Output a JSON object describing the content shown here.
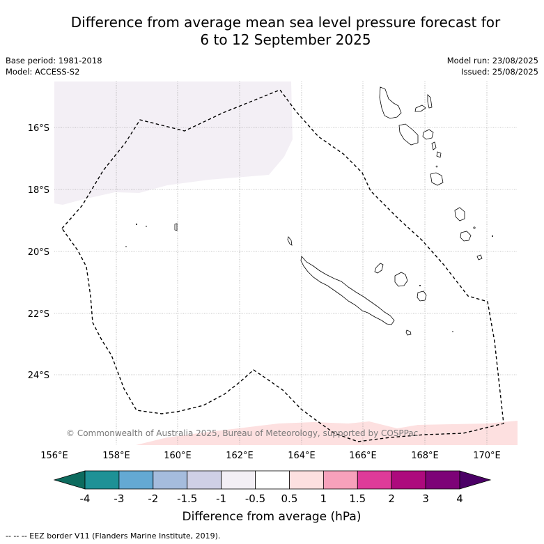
{
  "title_line1": "Difference from average mean sea level pressure forecast for",
  "title_line2": "6 to 12 September 2025",
  "base_period": "Base period: 1981-2018",
  "model": "Model: ACCESS-S2",
  "model_run": "Model run: 23/08/2025",
  "issued": "Issued: 25/08/2025",
  "copyright": "© Commonwealth of Australia 2025, Bureau of Meteorology, supported by COSPPac",
  "lat_labels": [
    "16°S",
    "18°S",
    "20°S",
    "22°S",
    "24°S"
  ],
  "lon_labels": [
    "156°E",
    "158°E",
    "160°E",
    "162°E",
    "164°E",
    "166°E",
    "168°E",
    "170°E"
  ],
  "colorbar": {
    "title": "Difference from average (hPa)",
    "tick_labels": [
      "-4",
      "-3",
      "-2",
      "-1.5",
      "-1",
      "-0.5",
      "0.5",
      "1",
      "1.5",
      "2",
      "3",
      "4"
    ],
    "colors": [
      "#0d6b5e",
      "#1e9196",
      "#64a9d3",
      "#a5bcdd",
      "#cfd0e6",
      "#f3eff5",
      "#ffffff",
      "#fde0e0",
      "#f7a1bb",
      "#de3b99",
      "#ad0a7d",
      "#7d0377",
      "#4b0066"
    ]
  },
  "footer": "--  --  -- EEZ border V11 (Flanders Marine Institute, 2019)."
}
